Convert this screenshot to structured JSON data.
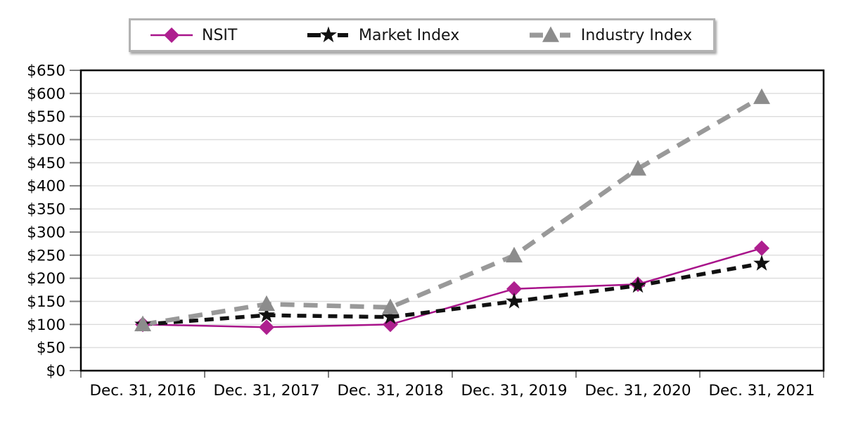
{
  "legend": {
    "items": [
      {
        "label": "NSIT",
        "marker": "diamond-marker-icon",
        "color": "#ae1f8f"
      },
      {
        "label": "Market Index",
        "marker": "star-marker-icon",
        "color": "#111111"
      },
      {
        "label": "Industry Index",
        "marker": "triangle-marker-icon",
        "color": "#8c8c8c"
      }
    ]
  },
  "chart_data": {
    "type": "line",
    "title": "",
    "xlabel": "",
    "ylabel": "",
    "categories": [
      "Dec. 31, 2016",
      "Dec. 31, 2017",
      "Dec. 31, 2018",
      "Dec. 31, 2019",
      "Dec. 31, 2020",
      "Dec. 31, 2021"
    ],
    "series": [
      {
        "name": "NSIT",
        "values": [
          100,
          94,
          100,
          177,
          187,
          265
        ],
        "color": "#ae1f8f",
        "line_color": "#a8138a",
        "marker": "diamond",
        "line_style": "solid",
        "line_width": 2.5
      },
      {
        "name": "Market Index",
        "values": [
          100,
          120,
          116,
          150,
          184,
          232
        ],
        "color": "#111111",
        "line_color": "#111111",
        "marker": "star",
        "line_style": "dashed",
        "line_width": 5.5
      },
      {
        "name": "Industry Index",
        "values": [
          100,
          144,
          137,
          249,
          437,
          592
        ],
        "color": "#8c8c8c",
        "line_color": "#999999",
        "marker": "triangle",
        "line_style": "dashed",
        "line_width": 6.5
      }
    ],
    "ylim": [
      0,
      650
    ],
    "ytick_step": 50,
    "ytick_labels": [
      "$0",
      "$50",
      "$100",
      "$150",
      "$200",
      "$250",
      "$300",
      "$350",
      "$400",
      "$450",
      "$500",
      "$550",
      "$600",
      "$650"
    ],
    "grid": true,
    "legend_position": "top",
    "colors": {
      "plot_border": "#000000",
      "gridline": "#dcdcdc",
      "tick": "#7f7f7f",
      "axis_text": "#000000"
    }
  }
}
